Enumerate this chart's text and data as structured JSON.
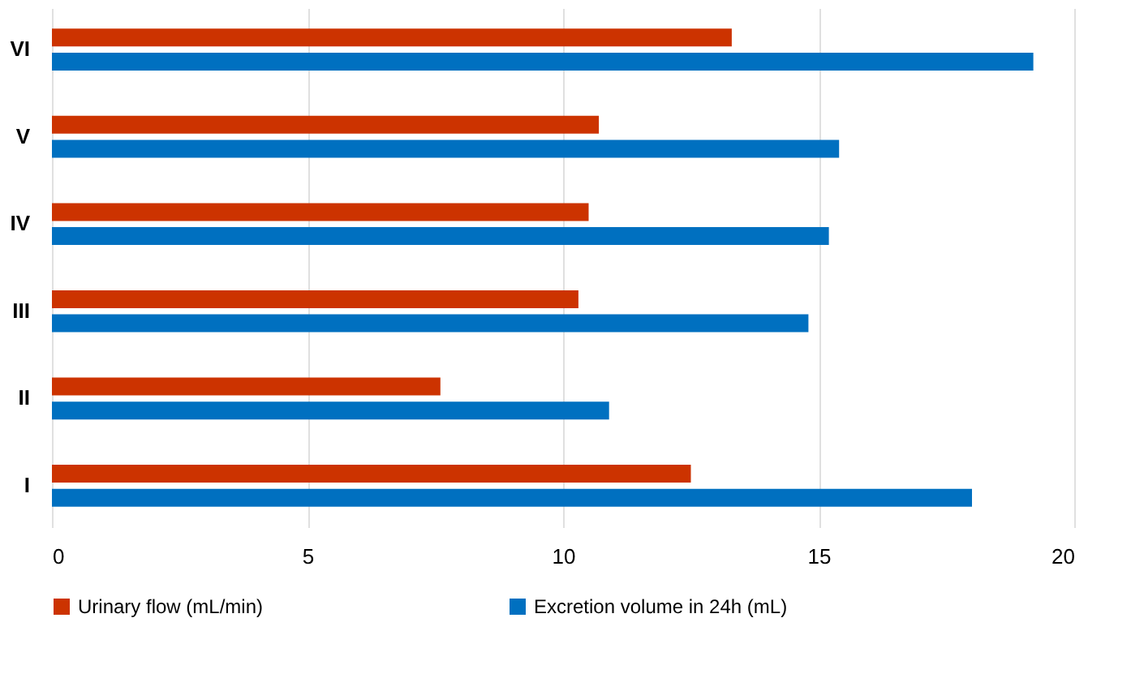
{
  "chart_data": {
    "type": "bar",
    "orientation": "horizontal",
    "categories": [
      "VI",
      "V",
      "IV",
      "III",
      "II",
      "I"
    ],
    "series": [
      {
        "name": "Urinary flow (mL/min)",
        "color": "#cc3300",
        "values": [
          13.3,
          10.7,
          10.5,
          10.3,
          7.6,
          12.5
        ]
      },
      {
        "name": "Excretion volume in 24h (mL)",
        "color": "#0070c0",
        "values": [
          19.2,
          15.4,
          15.2,
          14.8,
          10.9,
          18.0
        ]
      }
    ],
    "xlim": [
      0,
      20
    ],
    "xticks": [
      0,
      5,
      10,
      15,
      20
    ],
    "grid": "x",
    "legend": "bottom"
  }
}
